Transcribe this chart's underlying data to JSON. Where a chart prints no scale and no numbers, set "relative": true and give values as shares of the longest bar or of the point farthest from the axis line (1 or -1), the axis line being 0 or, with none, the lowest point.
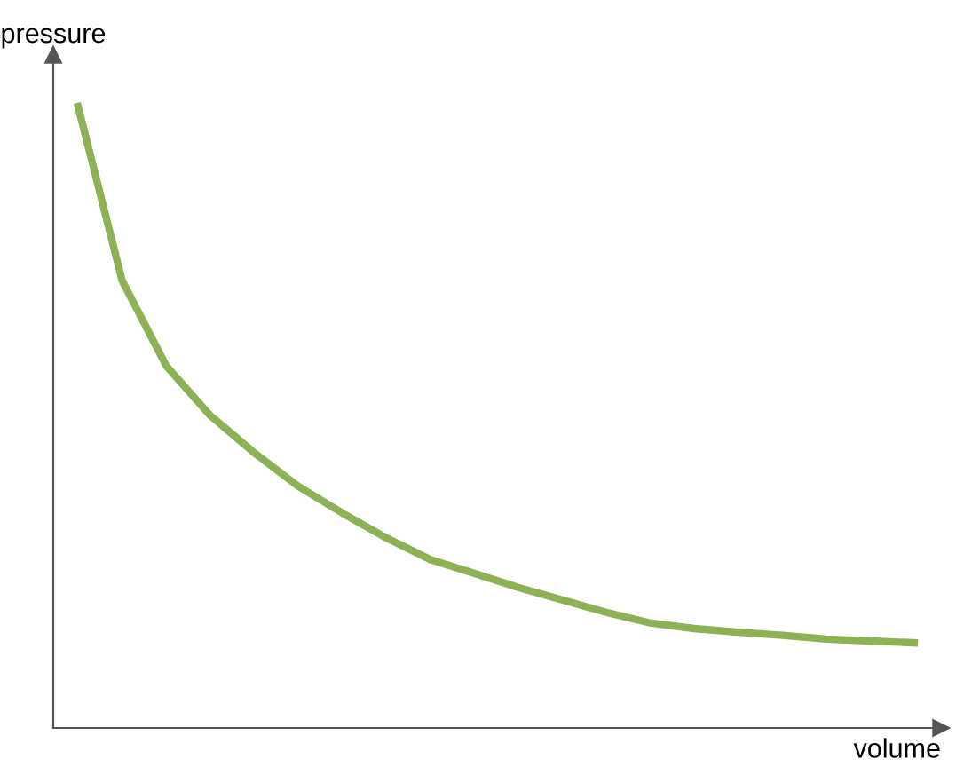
{
  "chart_data": {
    "type": "line",
    "relative": true,
    "xlabel": "volume",
    "ylabel": "pressure",
    "categories": [
      null,
      null,
      null,
      null,
      null,
      null,
      null,
      null,
      null,
      null,
      null,
      null,
      null,
      null,
      null,
      null,
      null,
      null,
      null,
      null
    ],
    "series": [
      {
        "color": "#8db255",
        "values": [
          1.0,
          0.72,
          0.583,
          0.503,
          0.443,
          0.389,
          0.346,
          0.306,
          0.271,
          0.249,
          0.226,
          0.206,
          0.186,
          0.169,
          0.16,
          0.154,
          0.149,
          0.143,
          0.14,
          0.137
        ]
      }
    ],
    "legend": false,
    "marker": "none",
    "line_style": "solid"
  }
}
